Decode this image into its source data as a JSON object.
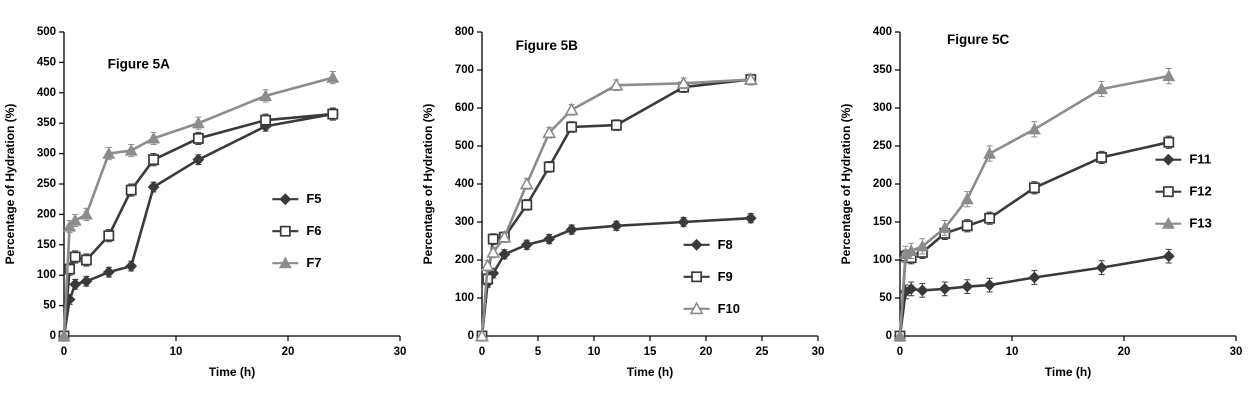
{
  "page": {
    "background": "#ffffff"
  },
  "chart_data": [
    {
      "type": "line",
      "id": "figure-5a",
      "title": "Figure 5A",
      "xlabel": "Time (h)",
      "ylabel": "Percentage of Hydration (%)",
      "xlim": [
        0,
        30
      ],
      "ylim": [
        0,
        500
      ],
      "ytick": 50,
      "xticks": [
        0,
        10,
        20,
        30
      ],
      "x": [
        0,
        0.5,
        1,
        2,
        4,
        6,
        8,
        12,
        18,
        24
      ],
      "series": [
        {
          "name": "F5",
          "marker": "diamond-filled",
          "color": "#3a3a3a",
          "err": 8,
          "values": [
            0,
            60,
            85,
            90,
            105,
            115,
            245,
            290,
            345,
            365
          ]
        },
        {
          "name": "F6",
          "marker": "square-open",
          "color": "#3a3a3a",
          "err": 10,
          "values": [
            0,
            110,
            130,
            125,
            165,
            240,
            290,
            325,
            355,
            365
          ]
        },
        {
          "name": "F7",
          "marker": "triangle-filled",
          "color": "#8c8c8c",
          "err": 10,
          "values": [
            0,
            180,
            190,
            200,
            300,
            305,
            325,
            350,
            395,
            425
          ]
        }
      ],
      "title_pos": [
        0.13,
        0.12
      ],
      "legend_pos": [
        0.62,
        0.55
      ],
      "grid": false,
      "legend_position_hint": "inside-right"
    },
    {
      "type": "line",
      "id": "figure-5b",
      "title": "Figure 5B",
      "xlabel": "Time (h)",
      "ylabel": "Percentage of Hydration (%)",
      "xlim": [
        0,
        30
      ],
      "ylim": [
        0,
        800
      ],
      "ytick": 100,
      "xticks": [
        0,
        5,
        10,
        15,
        20,
        25,
        30
      ],
      "x": [
        0,
        0.5,
        1,
        2,
        4,
        6,
        8,
        12,
        18,
        24
      ],
      "series": [
        {
          "name": "F8",
          "marker": "diamond-filled",
          "color": "#3a3a3a",
          "err": 12,
          "values": [
            0,
            140,
            165,
            215,
            240,
            255,
            280,
            290,
            300,
            310
          ]
        },
        {
          "name": "F9",
          "marker": "square-open",
          "color": "#3a3a3a",
          "err": 14,
          "values": [
            0,
            150,
            255,
            260,
            345,
            445,
            550,
            555,
            655,
            675
          ]
        },
        {
          "name": "F10",
          "marker": "triangle-open",
          "color": "#8c8c8c",
          "err": 14,
          "values": [
            0,
            185,
            220,
            260,
            400,
            535,
            595,
            660,
            665,
            675
          ]
        }
      ],
      "title_pos": [
        0.1,
        0.06
      ],
      "legend_pos": [
        0.6,
        0.7
      ],
      "grid": false,
      "legend_position_hint": "inside-bottom-right"
    },
    {
      "type": "line",
      "id": "figure-5c",
      "title": "Figure 5C",
      "xlabel": "Time (h)",
      "ylabel": "Percentage of Hydration (%)",
      "xlim": [
        0,
        30
      ],
      "ylim": [
        0,
        400
      ],
      "ytick": 50,
      "xticks": [
        0,
        10,
        20,
        30
      ],
      "x": [
        0,
        0.5,
        1,
        2,
        4,
        6,
        8,
        12,
        18,
        24
      ],
      "series": [
        {
          "name": "F11",
          "marker": "diamond-filled",
          "color": "#3a3a3a",
          "err": 9,
          "values": [
            0,
            58,
            62,
            60,
            62,
            65,
            67,
            77,
            90,
            105
          ]
        },
        {
          "name": "F12",
          "marker": "square-open",
          "color": "#3a3a3a",
          "err": 8,
          "values": [
            0,
            105,
            103,
            110,
            135,
            145,
            155,
            195,
            235,
            255
          ]
        },
        {
          "name": "F13",
          "marker": "triangle-filled",
          "color": "#8c8c8c",
          "err": 10,
          "values": [
            0,
            108,
            112,
            118,
            142,
            180,
            240,
            272,
            325,
            342
          ]
        }
      ],
      "title_pos": [
        0.14,
        0.04
      ],
      "legend_pos": [
        0.76,
        0.42
      ],
      "grid": false,
      "legend_position_hint": "inside-right"
    }
  ]
}
